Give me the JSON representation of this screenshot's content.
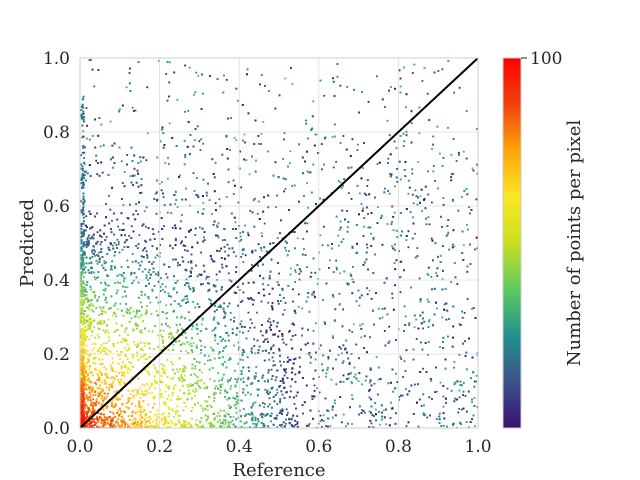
{
  "chart_data": {
    "type": "heatmap",
    "subtype": "density-scatter",
    "xlabel": "Reference",
    "ylabel": "Predicted",
    "xlim": [
      0.0,
      1.0
    ],
    "ylim": [
      0.0,
      1.0
    ],
    "xticks": [
      "0.0",
      "0.2",
      "0.4",
      "0.6",
      "0.8",
      "1.0"
    ],
    "yticks": [
      "0.0",
      "0.2",
      "0.4",
      "0.6",
      "0.8",
      "1.0"
    ],
    "grid": true,
    "reference_line": {
      "x": [
        0.0,
        1.0
      ],
      "y": [
        0.0,
        1.0
      ],
      "color": "#000000"
    },
    "colorbar": {
      "label": "Number of points per pixel",
      "max_label": "100",
      "range": [
        0,
        100
      ],
      "colormap": "viridis-to-turbo",
      "stops": [
        "#3b0f70",
        "#3b528b",
        "#21918c",
        "#5ec962",
        "#c8e020",
        "#fde725",
        "#fca50a",
        "#f0420f",
        "#ff0000"
      ]
    },
    "density_description": [
      {
        "x": 0.0,
        "y": 0.0,
        "density": "highest"
      },
      {
        "x": 0.05,
        "y": 0.1,
        "density": "high"
      },
      {
        "x": 0.2,
        "y": 0.2,
        "density": "medium"
      },
      {
        "x": 0.5,
        "y": 0.3,
        "density": "low"
      },
      {
        "x": 0.9,
        "y": 0.9,
        "density": "low"
      }
    ]
  }
}
